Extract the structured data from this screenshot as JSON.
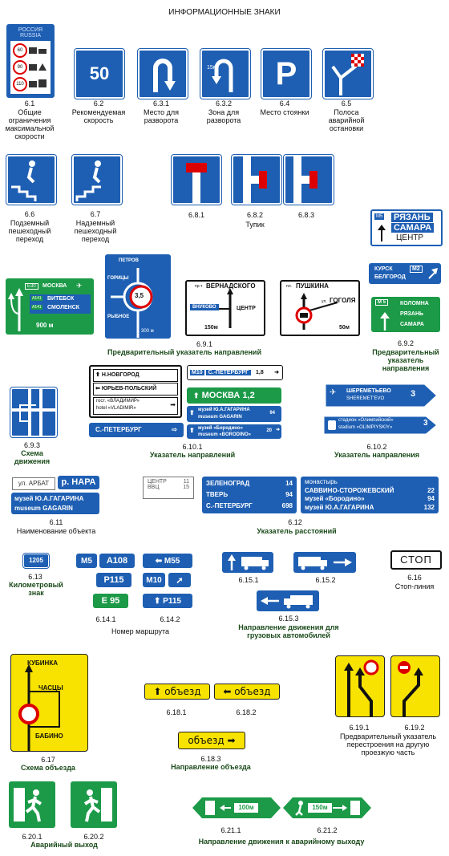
{
  "title": "ИНФОРМАЦИОННЫЕ ЗНАКИ",
  "s61": {
    "num": "6.1",
    "cap": "Общие ограничения максимальной скорости",
    "country1": "РОССИЯ",
    "country2": "RUSSIA",
    "v1": "60",
    "v2": "90",
    "v3": "110"
  },
  "s62": {
    "num": "6.2",
    "cap": "Рекомендуемая скорость",
    "value": "50"
  },
  "s631": {
    "num": "6.3.1",
    "cap": "Место для разворота"
  },
  "s632": {
    "num": "6.3.2",
    "cap": "Зона для разворота",
    "dist": "15м"
  },
  "s64": {
    "num": "6.4",
    "cap": "Место стоянки",
    "letter": "P"
  },
  "s65": {
    "num": "6.5",
    "cap": "Полоса аварийной остановки"
  },
  "s66": {
    "num": "6.6",
    "cap": "Подземный пешеходный переход"
  },
  "s67": {
    "num": "6.7",
    "cap": "Надземный пешеходный переход"
  },
  "s68": {
    "n1": "6.8.1",
    "n2": "6.8.2",
    "n3": "6.8.3",
    "cap": "Тупик"
  },
  "s691": {
    "cap": "6.9.1",
    "group": "Предварительный указатель направлений",
    "a": {
      "road": "E30",
      "city": "МОСКВА",
      "r1": "A141",
      "c1": "ВИТЕБСК",
      "r2": "A141",
      "c2": "СМОЛЕНСК",
      "dist": "900 м"
    },
    "b": {
      "top": "ПЕТРОВ",
      "left": "ГОРИЦЫ",
      "bottom": "РЫБНОЕ",
      "limit": "3,5",
      "dist": "300 м"
    },
    "c": {
      "pref": "пр-т",
      "top": "ВЕРНАДСКОГО",
      "left": "ВНУКОВО",
      "right": "ЦЕНТР",
      "dist": "150м"
    },
    "d": {
      "pref": "пл.",
      "top": "ПУШКИНА",
      "pref2": "ул.",
      "right": "ГОГОЛЯ",
      "dist": "50м"
    }
  },
  "s692": {
    "cap": "6.9.2",
    "group": "Предварительный указатель направления",
    "a": {
      "road": "M5",
      "l1": "РЯЗАНЬ",
      "l2": "САМАРА",
      "l3": "ЦЕНТР"
    },
    "b": {
      "l1": "КУРСК",
      "road": "M2",
      "l2": "БЕЛГОРОД"
    },
    "c": {
      "road": "M 5",
      "l1": "КОЛОМНА",
      "l2": "РЯЗАНЬ",
      "l3": "САМАРА"
    }
  },
  "s693": {
    "num": "6.9.3",
    "cap": "Схема движения"
  },
  "s6101": {
    "num": "6.10.1",
    "cap": "Указатель  направлений",
    "w1": "Н.НОВГОРОД",
    "w2": "ЮРЬЕВ-ПОЛЬСКИЙ",
    "w3a": "гост. «ВЛАДИМИР»",
    "w3b": "hotel «VLADIMIR»",
    "b1": "С.-ПЕТЕРБУРГ",
    "m10": "M10",
    "m10c": "С.-ПЕТЕРБУРГ",
    "m10d": "1,8",
    "gm": "МОСКВА",
    "gd": "1,2",
    "mus1": "музей Ю.А.ГАГАРИНА",
    "mus2": "museum GAGARIN",
    "musd": "94",
    "bor1": "музей «Бородино»",
    "bor2": "museum «BORODINO»",
    "bord": "20"
  },
  "s6102": {
    "num": "6.10.2",
    "cap": "Указатель направления",
    "a1": "ШЕРЕМЕТЬЕВО",
    "a2": "SHEREMET'EVO",
    "ad": "3",
    "b1": "стадион «Олимпийский»",
    "b2": "stadium «OLIMPIYSKIY»",
    "bd": "3"
  },
  "s611": {
    "num": "6.11",
    "cap": "Наименование объекта",
    "street": "ул. АРБАТ",
    "river": "р. НАРА",
    "mus1": "музей Ю.А.ГАГАРИНА",
    "mus2": "museum GAGARIN"
  },
  "s612": {
    "num": "6.12",
    "cap": "Указатель  расстояний",
    "w": [
      {
        "n": "ЦЕНТР",
        "d": "11"
      },
      {
        "n": "ВВЦ",
        "d": "15"
      }
    ],
    "b": [
      {
        "n": "ЗЕЛЕНОГРАД",
        "d": "14"
      },
      {
        "n": "ТВЕРЬ",
        "d": "94"
      },
      {
        "n": "С.-ПЕТЕРБУРГ",
        "d": "698"
      }
    ],
    "b2": [
      {
        "n": "монастырь",
        "d": ""
      },
      {
        "n": "САВВИНО-СТОРОЖЕВСКИЙ",
        "d": "22"
      },
      {
        "n": "музей «Бородино»",
        "d": "94"
      },
      {
        "n": "музей Ю.А.ГАГАРИНА",
        "d": "132"
      }
    ]
  },
  "s613": {
    "num": "6.13",
    "cap": "Километровый знак",
    "value": "1205"
  },
  "s614": {
    "n1": "6.14.1",
    "n2": "6.14.2",
    "cap": "Номер маршрута",
    "m5": "M5",
    "a108": "A108",
    "p115": "P115",
    "e95": "E 95",
    "m55": "M55",
    "m10": "M10",
    "p115b": "P115"
  },
  "s615": {
    "n1": "6.15.1",
    "n2": "6.15.2",
    "n3": "6.15.3",
    "cap": "Направление движения для грузовых автомобилей"
  },
  "s616": {
    "num": "6.16",
    "cap": "Стоп-линия",
    "text": "СТОП"
  },
  "s617": {
    "num": "6.17",
    "cap": "Схема объезда",
    "top": "КУБИНКА",
    "mid": "ЧАСЦЫ",
    "bot": "БАБИНО"
  },
  "s618": {
    "n1": "6.18.1",
    "n2": "6.18.2",
    "n3": "6.18.3",
    "cap": "Направление  объезда",
    "text": "объезд"
  },
  "s619": {
    "n1": "6.19.1",
    "n2": "6.19.2",
    "cap": "Предварительный указатель перестроения на другую проезжую часть"
  },
  "s620": {
    "n1": "6.20.1",
    "n2": "6.20.2",
    "cap": "Аварийный выход"
  },
  "s621": {
    "n1": "6.21.1",
    "n2": "6.21.2",
    "cap": "Направление движения к аварийному выходу",
    "d1": "100м",
    "d2": "150м"
  }
}
